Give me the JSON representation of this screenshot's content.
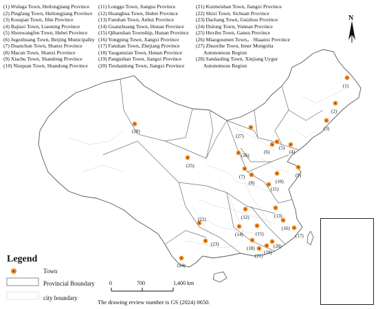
{
  "town_list": {
    "column1": [
      "(1) Wulaga Town, Heilongjiang Province",
      "(2) Pingfang Town, Heilongjiang Province",
      "(3) Kouqian Town, Jilin Province",
      "(4) Bajiazi Town, Liaoning Province",
      "(5) Shouwangfen Town, Hebei Province",
      "(6) Jugezhuang Town, Beijing Municipality",
      "(7) Duanchun Town, Shanxi Province",
      "(8) Macun Town, Shanxi Province",
      "(9) Xiachu Town, Shandong Province",
      "(10) Niuquan Town, Shandong Province"
    ],
    "column2": [
      "(11) Longgu Town, Jiangsu Province",
      "(12) Huanghua Town, Hubei Province",
      "(13) Fanshan Town, Anhui Province",
      "(14) Guanzhuang Town, Hunan Province",
      "(15) Qibaoshan Township, Hunan Province",
      "(16) Yongping Town, Jiangxi Province",
      "(17) Fanshan Town, Zhejiang Province",
      "(18) Yaoganxian Town, Hunan Province",
      "(19) Pangushan Town, Jiangxi Province",
      "(20) Tieshanlong Town, Jiangxi Province"
    ],
    "column3": [
      "(21) Kuimeishan Town, Jiangxi Province",
      "(22) Shixi Town, Sichuan Province",
      "(23) Dachang Town, Guizhou Province",
      "(24) Dulong Town, Yunnan Province",
      "(25) Hexibu Town, Gansu Province",
      "(26) Miaogoumen Town，  Shaanxi Province",
      "(27) Zhuorihe Town, Inner Mongolia",
      "      Autonomous Region",
      "(28) Sandaoling Town, Xinjiang Uygur",
      "      Autonomous Region"
    ]
  },
  "markers": [
    {
      "id": "1",
      "label": "(1)"
    },
    {
      "id": "2",
      "label": "(2)"
    },
    {
      "id": "3",
      "label": "(3)"
    },
    {
      "id": "4",
      "label": "(4)"
    },
    {
      "id": "5",
      "label": "(5)"
    },
    {
      "id": "6",
      "label": "(6)"
    },
    {
      "id": "7",
      "label": "(7)"
    },
    {
      "id": "8",
      "label": "(8)"
    },
    {
      "id": "9",
      "label": "(9)"
    },
    {
      "id": "10",
      "label": "(10)"
    },
    {
      "id": "11",
      "label": "(11)"
    },
    {
      "id": "12",
      "label": "(12)"
    },
    {
      "id": "13",
      "label": "(13)"
    },
    {
      "id": "14",
      "label": "(14)"
    },
    {
      "id": "15",
      "label": "(15)"
    },
    {
      "id": "16",
      "label": "(16)"
    },
    {
      "id": "17",
      "label": "(17)"
    },
    {
      "id": "18",
      "label": "(18)"
    },
    {
      "id": "19",
      "label": "(19)"
    },
    {
      "id": "20",
      "label": "(20)"
    },
    {
      "id": "21",
      "label": "(21)"
    },
    {
      "id": "22",
      "label": "(22)"
    },
    {
      "id": "23",
      "label": "(23)"
    },
    {
      "id": "24",
      "label": "(24)"
    },
    {
      "id": "25",
      "label": "(25)"
    },
    {
      "id": "26",
      "label": "(26)"
    },
    {
      "id": "27",
      "label": "(27)"
    },
    {
      "id": "28",
      "label": "(28)"
    }
  ],
  "legend": {
    "title": "Legend",
    "town": "Town",
    "provincial_boundary": "Provincial Boundary",
    "city_boundary": "city boundary"
  },
  "scale_bar": {
    "zero": "0",
    "mid": "700",
    "end": "1,400 km"
  },
  "north_arrow": {
    "label": "N"
  },
  "review_note": "The drawing review number is GS (2024) 0650.",
  "colors": {
    "marker_fill": "#f08a24",
    "marker_core": "#8a3a00",
    "boundary": "#6f6f6f",
    "city_line": "#bdbdbd"
  }
}
